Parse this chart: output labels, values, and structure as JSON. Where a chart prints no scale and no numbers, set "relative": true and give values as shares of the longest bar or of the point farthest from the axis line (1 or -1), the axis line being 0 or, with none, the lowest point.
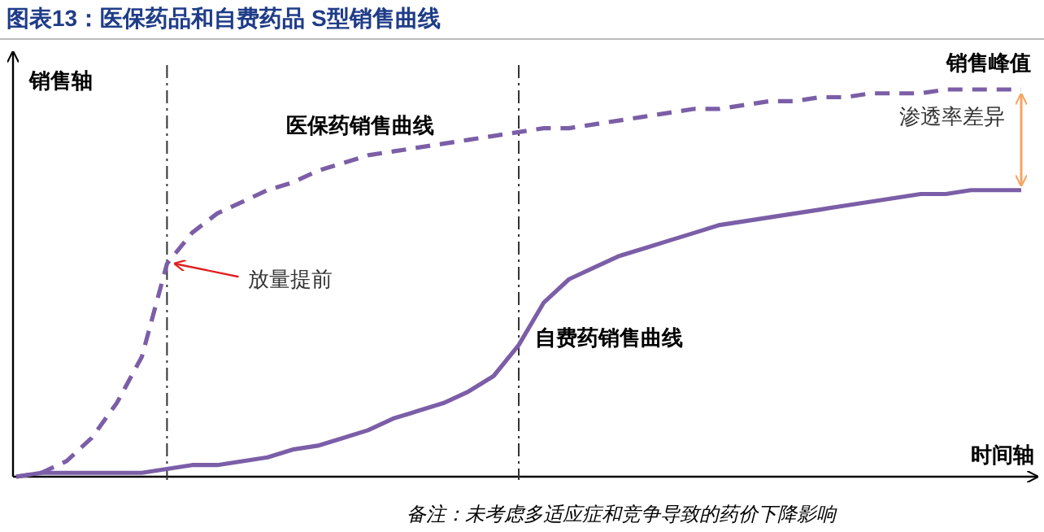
{
  "chart_data": {
    "type": "line",
    "title": "图表13：医保药品和自费药品 S型销售曲线",
    "xlabel": "时间轴",
    "ylabel": "销售轴",
    "relative": true,
    "categories": [
      null,
      null,
      null,
      null,
      null,
      null,
      null,
      null,
      null,
      null,
      null,
      null,
      null,
      null,
      null,
      null,
      null,
      null,
      null,
      null,
      null,
      null,
      null,
      null,
      null,
      null,
      null,
      null,
      null,
      null,
      null,
      null,
      null,
      null,
      null,
      null,
      null,
      null,
      null,
      null,
      null
    ],
    "series": [
      {
        "name": "医保药销售曲线",
        "color": "#7b5ea7",
        "line_style": "dashed",
        "values": [
          0,
          0.01,
          0.04,
          0.1,
          0.19,
          0.31,
          0.55,
          0.63,
          0.68,
          0.71,
          0.74,
          0.76,
          0.79,
          0.81,
          0.83,
          0.84,
          0.85,
          0.86,
          0.87,
          0.88,
          0.89,
          0.9,
          0.9,
          0.91,
          0.92,
          0.93,
          0.94,
          0.95,
          0.95,
          0.96,
          0.97,
          0.97,
          0.98,
          0.98,
          0.99,
          0.99,
          0.99,
          1,
          1,
          1,
          1
        ]
      },
      {
        "name": "自费药销售曲线",
        "color": "#7b5ea7",
        "line_style": "solid",
        "values": [
          0,
          0.01,
          0.01,
          0.01,
          0.01,
          0.01,
          0.02,
          0.03,
          0.03,
          0.04,
          0.05,
          0.07,
          0.08,
          0.1,
          0.12,
          0.15,
          0.17,
          0.19,
          0.22,
          0.26,
          0.34,
          0.45,
          0.51,
          0.54,
          0.57,
          0.59,
          0.61,
          0.63,
          0.65,
          0.66,
          0.67,
          0.68,
          0.69,
          0.7,
          0.71,
          0.72,
          0.73,
          0.73,
          0.74,
          0.74,
          0.74
        ]
      }
    ],
    "annotations": [
      "放量提前",
      "渗透率差异",
      "销售峰值",
      "备注：未考虑多适应症和竞争导致的药价下降影响"
    ]
  }
}
